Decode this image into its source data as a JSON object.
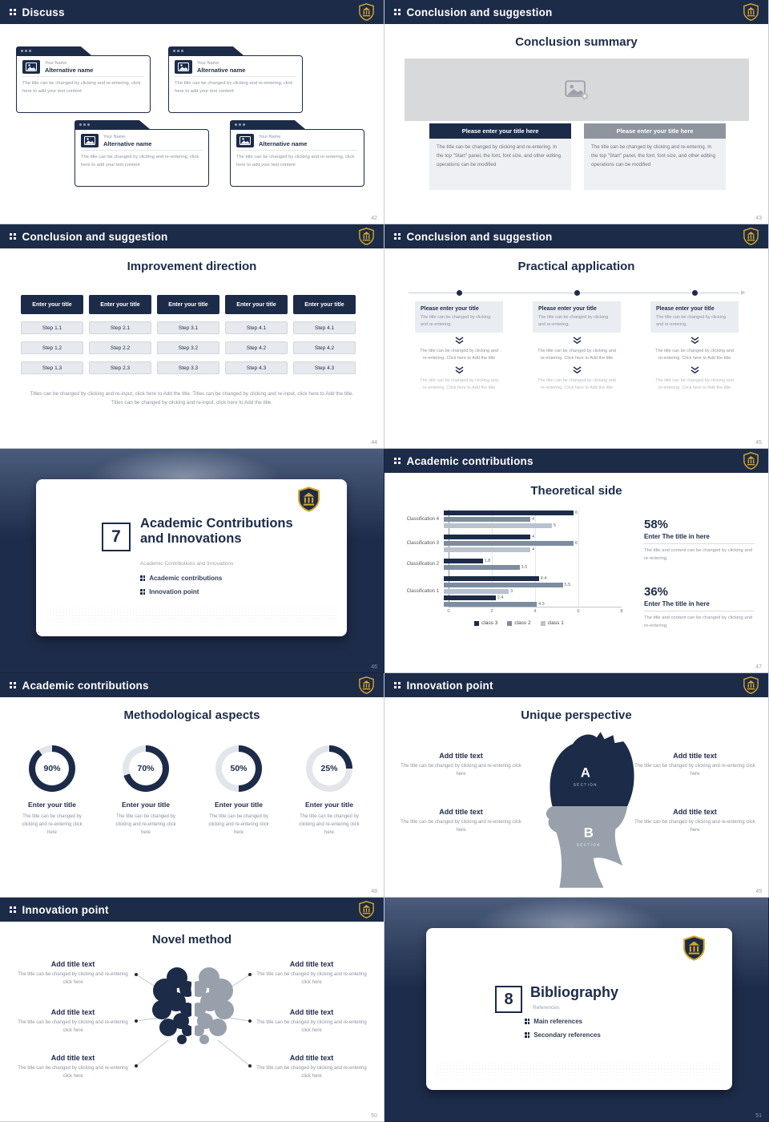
{
  "theme": {
    "navy": "#1c2b48",
    "gold": "#d7a62a",
    "mid_gray": "#8f959e",
    "light_gray": "#e9ecf0"
  },
  "slides": {
    "discuss": {
      "header": "Discuss",
      "page": "42",
      "cards": [
        {
          "name": "Your Name",
          "alt": "Alternative name",
          "body": "The title can be changed by clicking and re-entering, click here to add your text content"
        },
        {
          "name": "Your Name",
          "alt": "Alternative name",
          "body": "The title can be changed by clicking and re-entering, click here to add your text content"
        },
        {
          "name": "Your Name",
          "alt": "Alternative name",
          "body": "The title can be changed by clicking and re-entering, click here to add your text content"
        },
        {
          "name": "Your Name",
          "alt": "Alternative name",
          "body": "The title can be changed by clicking and re-entering, click here to add your text content"
        }
      ]
    },
    "summary": {
      "header": "Conclusion and suggestion",
      "page": "43",
      "title": "Conclusion summary",
      "button_left": "Please enter your title here",
      "button_right": "Please enter your title here",
      "para_left": "The title can be changed by clicking and re-entering. In the top \"Start\" panel, the font, font size, and other editing operations can be modified",
      "para_right": "The title can be changed by clicking and re-entering. In the top \"Start\" panel, the font, font size, and other editing operations can be modified"
    },
    "improvement": {
      "header": "Conclusion and suggestion",
      "page": "44",
      "title": "Improvement direction",
      "columns": [
        {
          "title": "Enter your title",
          "steps": [
            "Step 1.1",
            "Step 1.2",
            "Step 1.3"
          ]
        },
        {
          "title": "Enter your title",
          "steps": [
            "Step 2.1",
            "Step 2.2",
            "Step 2.3"
          ]
        },
        {
          "title": "Enter your title",
          "steps": [
            "Step 3.1",
            "Step 3.2",
            "Step 3.3"
          ]
        },
        {
          "title": "Enter your title",
          "steps": [
            "Step 4.1",
            "Step 4.2",
            "Step 4.3"
          ]
        },
        {
          "title": "Enter your title",
          "steps": [
            "Step 4.1",
            "Step 4.2",
            "Step 4.3"
          ]
        }
      ],
      "footer": "Titles can be changed by clicking and re-input, click here to Add the title. Titles can be changed by clicking and re-input, click here to Add the title. Titles can be changed by clicking and re-input, click here to Add the title."
    },
    "practical": {
      "header": "Conclusion and suggestion",
      "page": "45",
      "title": "Practical application",
      "columns": [
        {
          "title": "Please enter your title",
          "subtitle": "The title can be changed by clicking and re-entering.",
          "mid": "The title can be changed by clicking and re-entering. Click here to Add the title",
          "bottom": "The title can be changed by clicking and re-entering. Click here to Add the title"
        },
        {
          "title": "Please enter your title",
          "subtitle": "The title can be changed by clicking and re-entering.",
          "mid": "The title can be changed by clicking and re-entering. Click here to Add the title",
          "bottom": "The title can be changed by clicking and re-entering. Click here to Add the title"
        },
        {
          "title": "Please enter your title",
          "subtitle": "The title can be changed by clicking and re-entering.",
          "mid": "The title can be changed by clicking and re-entering. Click here to Add the title",
          "bottom": "The title can be changed by clicking and re-entering. Click here to Add the title"
        }
      ]
    },
    "cover7": {
      "page": "46",
      "number": "7",
      "title": "Academic Contributions and Innovations",
      "subtitle": "Academic Contributions and Innovations",
      "bullets": [
        "Academic contributions",
        "Innovation point"
      ]
    },
    "theoretical": {
      "header": "Academic contributions",
      "page": "47",
      "title": "Theoretical side",
      "chart_data": {
        "type": "bar",
        "orientation": "horizontal",
        "title": "Theoretical side",
        "xlim": [
          0,
          8
        ],
        "x_ticks": [
          "0",
          "2",
          "4",
          "6",
          "8"
        ],
        "palette": [
          "#1c2b48",
          "#7d8da1",
          "#b9c2ce"
        ],
        "rows": [
          {
            "label": "Classification 4",
            "bars": [
              {
                "v": 6,
                "c": 0
              },
              {
                "v": 4,
                "c": 1
              },
              {
                "v": 5,
                "c": 2
              }
            ]
          },
          {
            "label": "Classification 3",
            "bars": [
              {
                "v": 4,
                "c": 0
              },
              {
                "v": 6,
                "c": 1
              },
              {
                "v": 4,
                "c": 2
              }
            ]
          },
          {
            "label": "Classification 2",
            "bars": [
              {
                "v": 1.8,
                "c": 0
              },
              {
                "v": 3.5,
                "c": 1
              }
            ]
          },
          {
            "label": "Classification 1",
            "bars": [
              {
                "v": 4.4,
                "c": 0
              },
              {
                "v": 5.5,
                "c": 1
              },
              {
                "v": 3,
                "c": 2
              },
              {
                "v": 2.4,
                "c": 0
              },
              {
                "v": 4.3,
                "c": 1
              }
            ]
          }
        ],
        "legend": [
          {
            "label": "class 3",
            "c": 0
          },
          {
            "label": "class 2",
            "c": 1
          },
          {
            "label": "class 1",
            "c": 2
          }
        ]
      },
      "stats": [
        {
          "pct": "58%",
          "label": "Enter The title in here",
          "desc": "The title and content can be changed by clicking and re-entering."
        },
        {
          "pct": "36%",
          "label": "Enter The title in here",
          "desc": "The title and content can be changed by clicking and re-entering."
        }
      ]
    },
    "methodological": {
      "header": "Academic contributions",
      "page": "48",
      "title": "Methodological aspects",
      "items": [
        {
          "pct": 90,
          "pct_label": "90%",
          "label": "Enter your title",
          "desc": "The title can be changed by clicking and re-entering click here"
        },
        {
          "pct": 70,
          "pct_label": "70%",
          "label": "Enter your title",
          "desc": "The title can be changed by clicking and re-entering click here"
        },
        {
          "pct": 50,
          "pct_label": "50%",
          "label": "Enter your title",
          "desc": "The title can be changed by clicking and re-entering click here"
        },
        {
          "pct": 25,
          "pct_label": "25%",
          "label": "Enter your title",
          "desc": "The title can be changed by clicking and re-entering click here"
        }
      ]
    },
    "unique": {
      "header": "Innovation point",
      "page": "49",
      "title": "Unique perspective",
      "section_a": "A",
      "section_a_sub": "SECTION",
      "section_b": "B",
      "section_b_sub": "SECTION",
      "left": [
        {
          "title": "Add title text",
          "desc": "The title can be changed by clicking and re-entering click here"
        },
        {
          "title": "Add title text",
          "desc": "The title can be changed by clicking and re-entering click here"
        }
      ],
      "right": [
        {
          "title": "Add title text",
          "desc": "The title can be changed by clicking and re-entering click here"
        },
        {
          "title": "Add title text",
          "desc": "The title can be changed by clicking and re-entering click here"
        }
      ]
    },
    "novel": {
      "header": "Innovation point",
      "page": "50",
      "title": "Novel method",
      "left": [
        {
          "title": "Add title text",
          "desc": "The title can be changed by clicking and re-entering click here"
        },
        {
          "title": "Add title text",
          "desc": "The title can be changed by clicking and re-entering click here"
        },
        {
          "title": "Add title text",
          "desc": "The title can be changed by clicking and re-entering click here"
        }
      ],
      "right": [
        {
          "title": "Add title text",
          "desc": "The title can be changed by clicking and re-entering click here"
        },
        {
          "title": "Add title text",
          "desc": "The title can be changed by clicking and re-entering click here"
        },
        {
          "title": "Add title text",
          "desc": "The title can be changed by clicking and re-entering click here"
        }
      ]
    },
    "cover8": {
      "page": "51",
      "number": "8",
      "title": "Bibliography",
      "subtitle": "References",
      "bullets": [
        "Main references",
        "Secondary references"
      ]
    }
  }
}
